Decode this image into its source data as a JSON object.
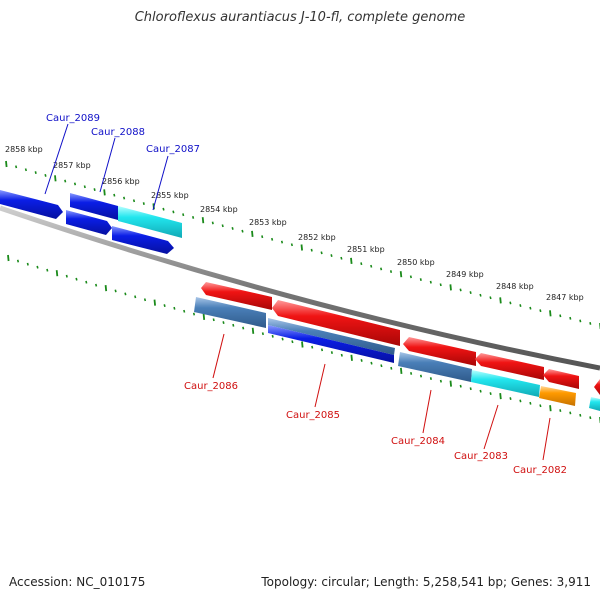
{
  "title": "Chloroflexus aurantiacus J-10-fl, complete genome",
  "accession_text": "Accession: NC_010175",
  "topology_text": "Topology: circular; Length: 5,258,541 bp; Genes: 3,911",
  "kbp_labels": [
    "2858 kbp",
    "2857 kbp",
    "2856 kbp",
    "2855 kbp",
    "2854 kbp",
    "2853 kbp",
    "2852 kbp",
    "2851 kbp",
    "2850 kbp",
    "2849 kbp",
    "2848 kbp",
    "2847 kbp"
  ],
  "forward_gene_labels": [
    "Caur_2089",
    "Caur_2088",
    "Caur_2087"
  ],
  "reverse_gene_labels": [
    "Caur_2086",
    "Caur_2085",
    "Caur_2084",
    "Caur_2083",
    "Caur_2082"
  ],
  "colors": {
    "forward_label": "#1010c8",
    "reverse_label": "#d01010",
    "blue_gene": "#0a1ee6",
    "cyan_gene": "#22e6ee",
    "red_gene": "#f01414",
    "steel_gene": "#4a7fb8",
    "orange_gene": "#ff9a00",
    "ticks": "#1a8a1a",
    "backbone": "#777777"
  }
}
